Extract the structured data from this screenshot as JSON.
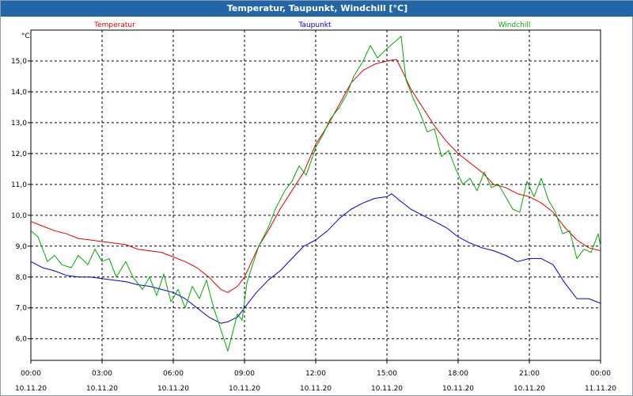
{
  "window": {
    "title": "Temperatur, Taupunkt, Windchill [°C]"
  },
  "chart_data": {
    "type": "line",
    "title": "Temperatur, Taupunkt, Windchill [°C]",
    "ylabel": "°C",
    "ylim": [
      5.3,
      16.0
    ],
    "yticks": [
      6.0,
      7.0,
      8.0,
      9.0,
      10.0,
      11.0,
      12.0,
      13.0,
      14.0,
      15.0
    ],
    "ytick_labels": [
      "6,0",
      "7,0",
      "8,0",
      "9,0",
      "10,0",
      "11,0",
      "12,0",
      "13,0",
      "14,0",
      "15,0"
    ],
    "xlim_hours": [
      0,
      24
    ],
    "xticks": [
      {
        "time": "00:00",
        "date": "10.11.20",
        "hour": 0
      },
      {
        "time": "03:00",
        "date": "10.11.20",
        "hour": 3
      },
      {
        "time": "06:00",
        "date": "10.11.20",
        "hour": 6
      },
      {
        "time": "09:00",
        "date": "10.11.20",
        "hour": 9
      },
      {
        "time": "12:00",
        "date": "10.11.20",
        "hour": 12
      },
      {
        "time": "15:00",
        "date": "10.11.20",
        "hour": 15
      },
      {
        "time": "18:00",
        "date": "10.11.20",
        "hour": 18
      },
      {
        "time": "21:00",
        "date": "10.11.20",
        "hour": 21
      },
      {
        "time": "00:00",
        "date": "11.11.20",
        "hour": 24
      }
    ],
    "grid": true,
    "legend": "top",
    "series": [
      {
        "name": "Temperatur",
        "color": "#dd0000",
        "points": [
          [
            0,
            9.8
          ],
          [
            0.5,
            9.65
          ],
          [
            1,
            9.5
          ],
          [
            1.5,
            9.4
          ],
          [
            2,
            9.25
          ],
          [
            2.5,
            9.2
          ],
          [
            3,
            9.15
          ],
          [
            3.5,
            9.1
          ],
          [
            4,
            9.05
          ],
          [
            4.5,
            8.9
          ],
          [
            5,
            8.85
          ],
          [
            5.5,
            8.8
          ],
          [
            6,
            8.65
          ],
          [
            6.5,
            8.5
          ],
          [
            7,
            8.3
          ],
          [
            7.5,
            8.0
          ],
          [
            8,
            7.6
          ],
          [
            8.3,
            7.5
          ],
          [
            8.7,
            7.7
          ],
          [
            9,
            8.0
          ],
          [
            9.3,
            8.5
          ],
          [
            9.6,
            9.0
          ],
          [
            10,
            9.5
          ],
          [
            10.5,
            10.2
          ],
          [
            11,
            10.8
          ],
          [
            11.5,
            11.4
          ],
          [
            12,
            12.3
          ],
          [
            12.5,
            12.9
          ],
          [
            13,
            13.6
          ],
          [
            13.5,
            14.3
          ],
          [
            14,
            14.7
          ],
          [
            14.5,
            14.9
          ],
          [
            15,
            15.0
          ],
          [
            15.4,
            15.05
          ],
          [
            15.7,
            14.6
          ],
          [
            16,
            14.1
          ],
          [
            16.5,
            13.5
          ],
          [
            17,
            12.9
          ],
          [
            17.5,
            12.4
          ],
          [
            18,
            12.0
          ],
          [
            18.5,
            11.7
          ],
          [
            19,
            11.4
          ],
          [
            19.5,
            11.0
          ],
          [
            20,
            10.9
          ],
          [
            20.5,
            10.7
          ],
          [
            21,
            10.6
          ],
          [
            21.5,
            10.4
          ],
          [
            22,
            10.1
          ],
          [
            22.5,
            9.6
          ],
          [
            23,
            9.2
          ],
          [
            23.5,
            8.95
          ],
          [
            24,
            8.85
          ]
        ]
      },
      {
        "name": "Taupunkt",
        "color": "#0000cc",
        "points": [
          [
            0,
            8.5
          ],
          [
            0.5,
            8.3
          ],
          [
            1,
            8.2
          ],
          [
            1.5,
            8.05
          ],
          [
            2,
            8.0
          ],
          [
            2.5,
            8.0
          ],
          [
            3,
            7.95
          ],
          [
            3.5,
            7.9
          ],
          [
            4,
            7.85
          ],
          [
            4.5,
            7.75
          ],
          [
            5,
            7.7
          ],
          [
            5.5,
            7.6
          ],
          [
            6,
            7.5
          ],
          [
            6.5,
            7.3
          ],
          [
            7,
            7.0
          ],
          [
            7.5,
            6.7
          ],
          [
            8,
            6.5
          ],
          [
            8.3,
            6.55
          ],
          [
            8.7,
            6.7
          ],
          [
            9,
            7.0
          ],
          [
            9.5,
            7.5
          ],
          [
            10,
            7.9
          ],
          [
            10.5,
            8.2
          ],
          [
            11,
            8.6
          ],
          [
            11.5,
            9.0
          ],
          [
            12,
            9.2
          ],
          [
            12.5,
            9.5
          ],
          [
            13,
            9.9
          ],
          [
            13.5,
            10.2
          ],
          [
            14,
            10.4
          ],
          [
            14.5,
            10.55
          ],
          [
            15,
            10.6
          ],
          [
            15.2,
            10.7
          ],
          [
            15.5,
            10.5
          ],
          [
            16,
            10.2
          ],
          [
            16.5,
            10.0
          ],
          [
            17,
            9.8
          ],
          [
            17.5,
            9.6
          ],
          [
            18,
            9.3
          ],
          [
            18.5,
            9.1
          ],
          [
            19,
            8.95
          ],
          [
            19.5,
            8.85
          ],
          [
            20,
            8.7
          ],
          [
            20.5,
            8.5
          ],
          [
            21,
            8.6
          ],
          [
            21.5,
            8.6
          ],
          [
            22,
            8.4
          ],
          [
            22.5,
            7.8
          ],
          [
            23,
            7.3
          ],
          [
            23.5,
            7.3
          ],
          [
            24,
            7.15
          ]
        ]
      },
      {
        "name": "Windchill",
        "color": "#00aa00",
        "points": [
          [
            0,
            9.5
          ],
          [
            0.3,
            9.3
          ],
          [
            0.7,
            8.5
          ],
          [
            1,
            8.7
          ],
          [
            1.3,
            8.4
          ],
          [
            1.7,
            8.3
          ],
          [
            2,
            8.7
          ],
          [
            2.4,
            8.4
          ],
          [
            2.7,
            8.9
          ],
          [
            3,
            8.5
          ],
          [
            3.3,
            8.6
          ],
          [
            3.6,
            8.0
          ],
          [
            4,
            8.5
          ],
          [
            4.3,
            8.0
          ],
          [
            4.7,
            7.6
          ],
          [
            5,
            8.0
          ],
          [
            5.3,
            7.4
          ],
          [
            5.6,
            8.1
          ],
          [
            5.9,
            7.2
          ],
          [
            6.2,
            7.6
          ],
          [
            6.5,
            7.0
          ],
          [
            6.8,
            7.7
          ],
          [
            7.1,
            7.3
          ],
          [
            7.4,
            7.9
          ],
          [
            7.7,
            7.0
          ],
          [
            8,
            6.3
          ],
          [
            8.3,
            5.6
          ],
          [
            8.5,
            6.2
          ],
          [
            8.7,
            6.8
          ],
          [
            8.9,
            6.6
          ],
          [
            9.1,
            7.8
          ],
          [
            9.3,
            8.3
          ],
          [
            9.6,
            9.0
          ],
          [
            10,
            9.6
          ],
          [
            10.3,
            10.2
          ],
          [
            10.7,
            10.8
          ],
          [
            11,
            11.1
          ],
          [
            11.3,
            11.6
          ],
          [
            11.6,
            11.3
          ],
          [
            12,
            12.2
          ],
          [
            12.3,
            12.6
          ],
          [
            12.6,
            13.1
          ],
          [
            13,
            13.5
          ],
          [
            13.3,
            13.9
          ],
          [
            13.6,
            14.5
          ],
          [
            14,
            15.0
          ],
          [
            14.3,
            15.5
          ],
          [
            14.6,
            15.1
          ],
          [
            15,
            15.4
          ],
          [
            15.3,
            15.6
          ],
          [
            15.6,
            15.8
          ],
          [
            15.8,
            14.4
          ],
          [
            16.1,
            13.8
          ],
          [
            16.4,
            13.3
          ],
          [
            16.7,
            12.7
          ],
          [
            17,
            12.8
          ],
          [
            17.3,
            11.9
          ],
          [
            17.6,
            12.1
          ],
          [
            17.9,
            11.5
          ],
          [
            18.2,
            11.0
          ],
          [
            18.5,
            11.2
          ],
          [
            18.8,
            10.8
          ],
          [
            19.1,
            11.4
          ],
          [
            19.4,
            10.9
          ],
          [
            19.7,
            11.0
          ],
          [
            20,
            10.6
          ],
          [
            20.3,
            10.2
          ],
          [
            20.6,
            10.1
          ],
          [
            20.9,
            11.1
          ],
          [
            21.2,
            10.6
          ],
          [
            21.5,
            11.2
          ],
          [
            21.8,
            10.5
          ],
          [
            22.1,
            10.1
          ],
          [
            22.4,
            9.4
          ],
          [
            22.7,
            9.5
          ],
          [
            23,
            8.6
          ],
          [
            23.3,
            8.9
          ],
          [
            23.6,
            8.8
          ],
          [
            23.9,
            9.4
          ],
          [
            24,
            9.0
          ]
        ]
      }
    ]
  }
}
